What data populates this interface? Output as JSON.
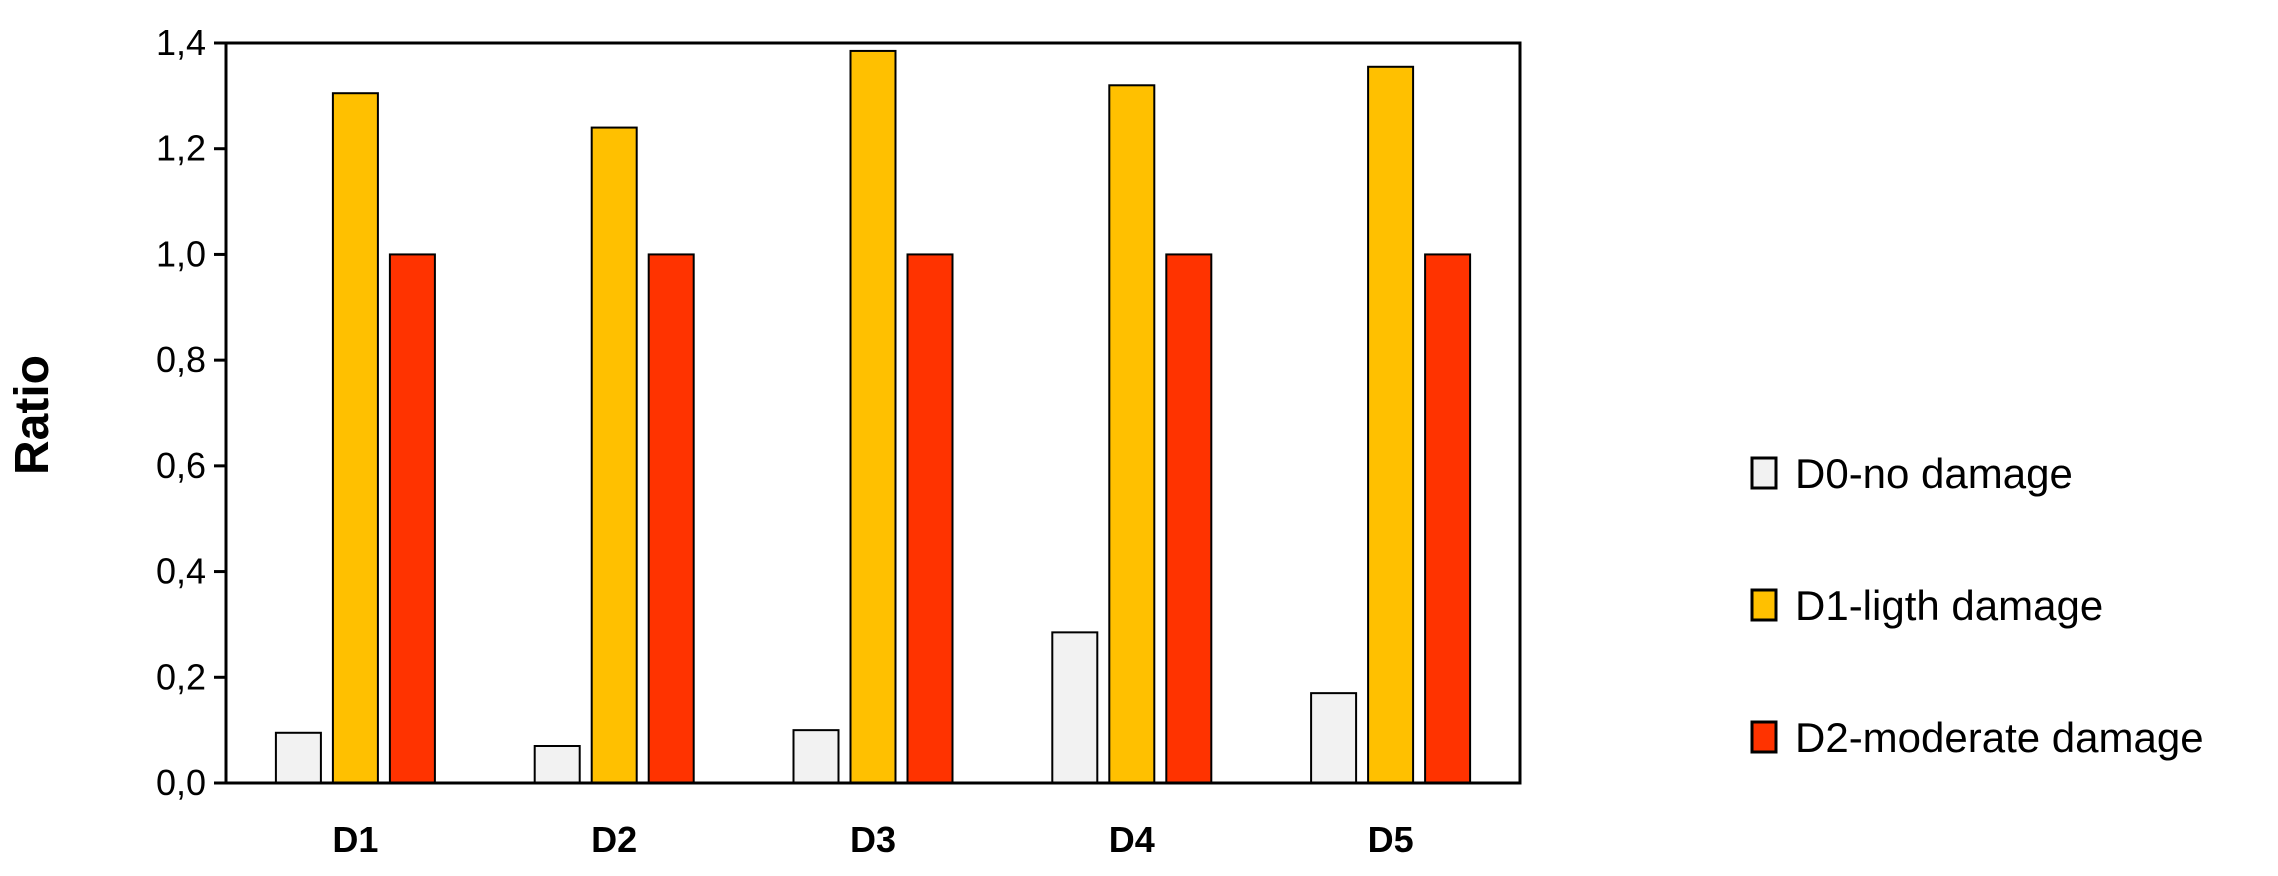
{
  "chart_data": {
    "type": "bar",
    "title": "",
    "xlabel": "",
    "ylabel": "Ratio",
    "ylim": [
      0,
      1.4
    ],
    "yticks": [
      0,
      0.2,
      0.4,
      0.6,
      0.8,
      1.0,
      1.2,
      1.4
    ],
    "ytick_labels": [
      "0,0",
      "0,2",
      "0,4",
      "0,6",
      "0,8",
      "1,0",
      "1,2",
      "1,4"
    ],
    "categories": [
      "D1",
      "D2",
      "D3",
      "D4",
      "D5"
    ],
    "series": [
      {
        "name": "D0-no damage",
        "color": "#f2f2f2",
        "values": [
          0.095,
          0.07,
          0.1,
          0.285,
          0.17
        ]
      },
      {
        "name": "D1-ligth damage",
        "color": "#ffc000",
        "values": [
          1.305,
          1.24,
          1.385,
          1.32,
          1.355
        ]
      },
      {
        "name": "D2-moderate damage",
        "color": "#ff3300",
        "values": [
          1.0,
          1.0,
          1.0,
          1.0,
          1.0
        ]
      }
    ],
    "grid": false,
    "legend_position": "right"
  }
}
